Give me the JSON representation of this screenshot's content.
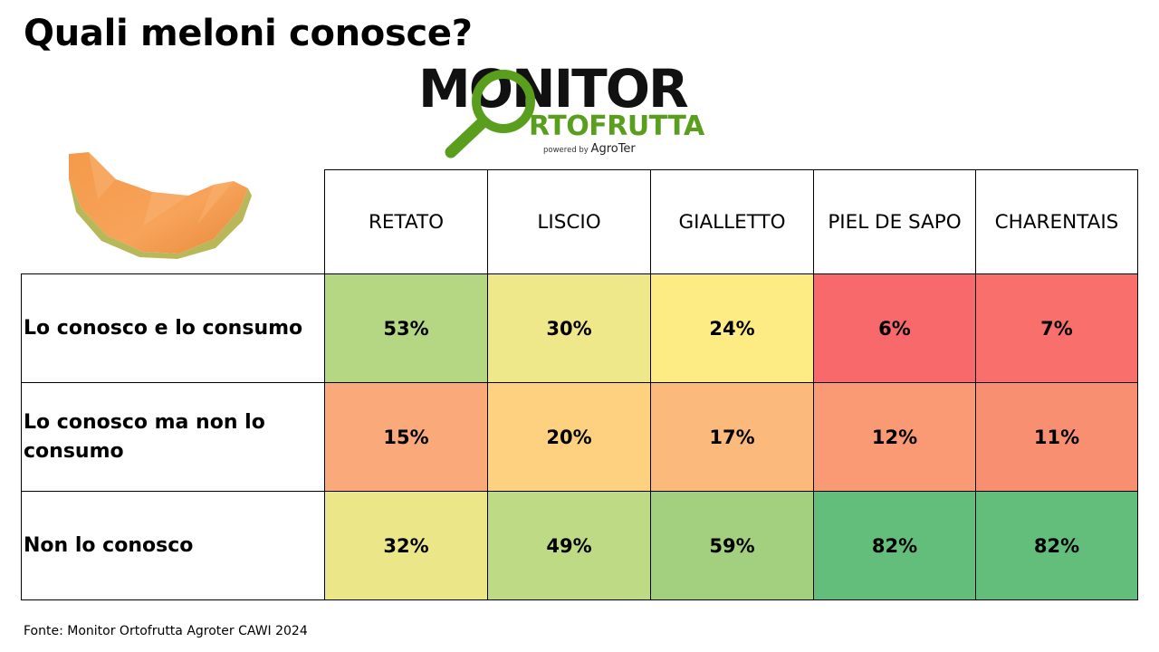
{
  "title": "Quali meloni conosce?",
  "logo": {
    "line1": "MONITOR",
    "line2": "RTOFRUTTA",
    "powered_by": "powered by",
    "brand": "AgroTer",
    "colors": {
      "dark": "#111111",
      "green": "#5a9e1e"
    }
  },
  "source": "Fonte: Monitor Ortofrutta Agroter CAWI 2024",
  "chart_data": {
    "type": "table",
    "columns": [
      "RETATO",
      "LISCIO",
      "GIALLETTO",
      "PIEL DE SAPO",
      "CHARENTAIS"
    ],
    "rows": [
      {
        "label": "Lo conosco e lo consumo",
        "values": [
          "53%",
          "30%",
          "24%",
          "6%",
          "7%"
        ],
        "colors": [
          "#b5d784",
          "#efe88a",
          "#fdeb84",
          "#f8696b",
          "#f86f6c"
        ]
      },
      {
        "label": "Lo conosco ma non lo consumo",
        "values": [
          "15%",
          "20%",
          "17%",
          "12%",
          "11%"
        ],
        "colors": [
          "#faa97a",
          "#fdd17f",
          "#fbb97c",
          "#f99a74",
          "#f98f71"
        ]
      },
      {
        "label": "Non lo conosco",
        "values": [
          "32%",
          "49%",
          "59%",
          "82%",
          "82%"
        ],
        "colors": [
          "#ebe788",
          "#bfda85",
          "#a3d07f",
          "#63be7b",
          "#63be7b"
        ]
      }
    ]
  }
}
